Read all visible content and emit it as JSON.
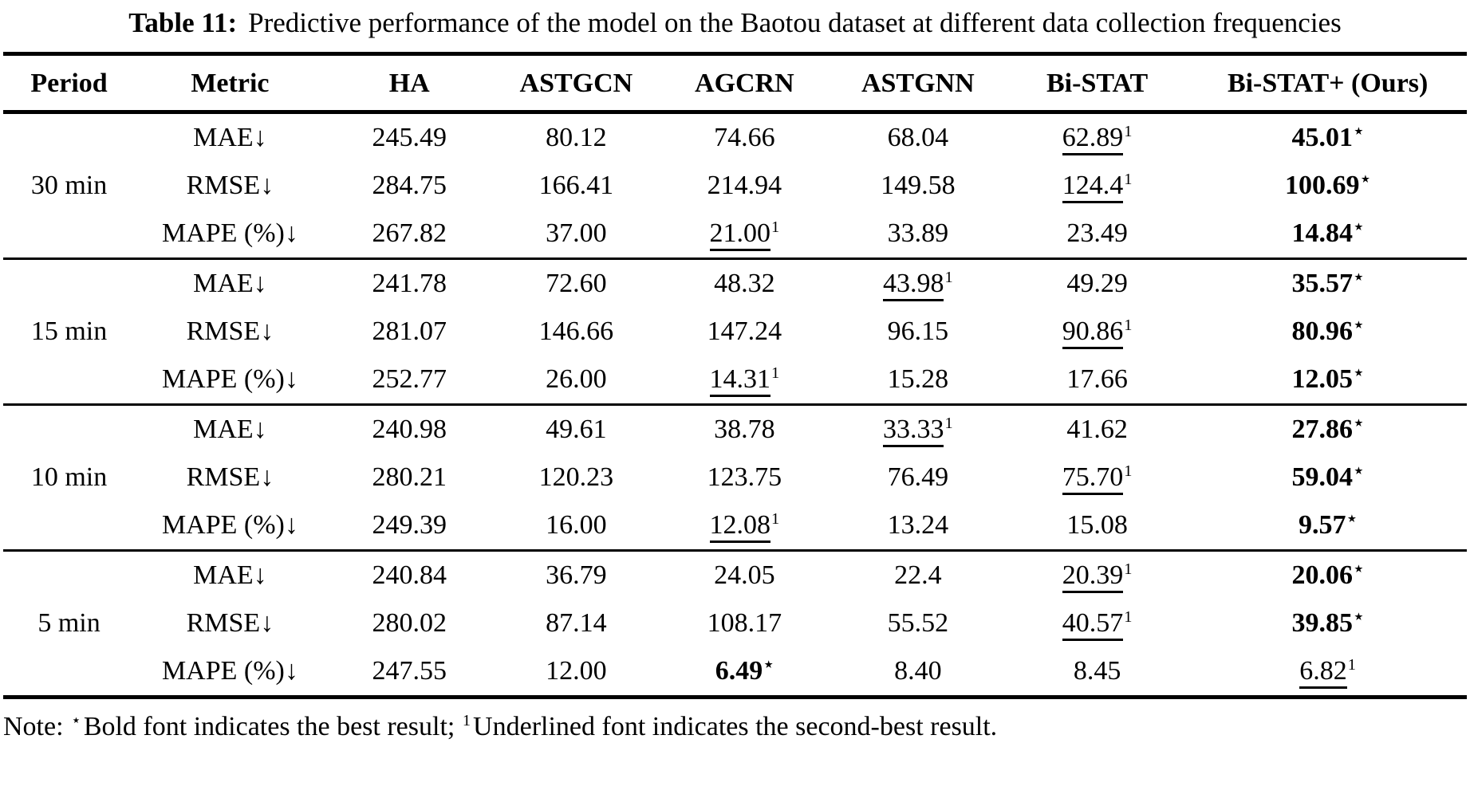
{
  "caption": {
    "label": "Table 11:",
    "text": "Predictive performance of the model on the Baotou dataset at different data collection frequencies"
  },
  "table": {
    "columns": [
      "Period",
      "Metric",
      "HA",
      "ASTGCN",
      "AGCRN",
      "ASTGNN",
      "Bi-STAT",
      "Bi-STAT+ (Ours)"
    ],
    "legend": {
      "best_marker": "⋆",
      "second_best_marker": "1"
    },
    "groups": [
      {
        "period": "30 min",
        "rows": [
          {
            "metric": "MAE↓",
            "values": [
              {
                "text": "245.49"
              },
              {
                "text": "80.12"
              },
              {
                "text": "74.66"
              },
              {
                "text": "68.04"
              },
              {
                "text": "62.89",
                "style": "underline",
                "sup": "1"
              },
              {
                "text": "45.01",
                "style": "bold",
                "sup": "⋆"
              }
            ]
          },
          {
            "metric": "RMSE↓",
            "values": [
              {
                "text": "284.75"
              },
              {
                "text": "166.41"
              },
              {
                "text": "214.94"
              },
              {
                "text": "149.58"
              },
              {
                "text": "124.4",
                "style": "underline",
                "sup": "1"
              },
              {
                "text": "100.69",
                "style": "bold",
                "sup": "⋆"
              }
            ]
          },
          {
            "metric": "MAPE (%)↓",
            "values": [
              {
                "text": "267.82"
              },
              {
                "text": "37.00"
              },
              {
                "text": "21.00",
                "style": "underline",
                "sup": "1"
              },
              {
                "text": "33.89"
              },
              {
                "text": "23.49"
              },
              {
                "text": "14.84",
                "style": "bold",
                "sup": "⋆"
              }
            ]
          }
        ]
      },
      {
        "period": "15 min",
        "rows": [
          {
            "metric": "MAE↓",
            "values": [
              {
                "text": "241.78"
              },
              {
                "text": "72.60"
              },
              {
                "text": "48.32"
              },
              {
                "text": "43.98",
                "style": "underline",
                "sup": "1"
              },
              {
                "text": "49.29"
              },
              {
                "text": "35.57",
                "style": "bold",
                "sup": "⋆"
              }
            ]
          },
          {
            "metric": "RMSE↓",
            "values": [
              {
                "text": "281.07"
              },
              {
                "text": "146.66"
              },
              {
                "text": "147.24"
              },
              {
                "text": "96.15"
              },
              {
                "text": "90.86",
                "style": "underline",
                "sup": "1"
              },
              {
                "text": "80.96",
                "style": "bold",
                "sup": "⋆"
              }
            ]
          },
          {
            "metric": "MAPE (%)↓",
            "values": [
              {
                "text": "252.77"
              },
              {
                "text": "26.00"
              },
              {
                "text": "14.31",
                "style": "underline",
                "sup": "1"
              },
              {
                "text": "15.28"
              },
              {
                "text": "17.66"
              },
              {
                "text": "12.05",
                "style": "bold",
                "sup": "⋆"
              }
            ]
          }
        ]
      },
      {
        "period": "10 min",
        "rows": [
          {
            "metric": "MAE↓",
            "values": [
              {
                "text": "240.98"
              },
              {
                "text": "49.61"
              },
              {
                "text": "38.78"
              },
              {
                "text": "33.33",
                "style": "underline",
                "sup": "1"
              },
              {
                "text": "41.62"
              },
              {
                "text": "27.86",
                "style": "bold",
                "sup": "⋆"
              }
            ]
          },
          {
            "metric": "RMSE↓",
            "values": [
              {
                "text": "280.21"
              },
              {
                "text": "120.23"
              },
              {
                "text": "123.75"
              },
              {
                "text": "76.49"
              },
              {
                "text": "75.70",
                "style": "underline",
                "sup": "1"
              },
              {
                "text": "59.04",
                "style": "bold",
                "sup": "⋆"
              }
            ]
          },
          {
            "metric": "MAPE (%)↓",
            "values": [
              {
                "text": "249.39"
              },
              {
                "text": "16.00"
              },
              {
                "text": "12.08",
                "style": "underline",
                "sup": "1"
              },
              {
                "text": "13.24"
              },
              {
                "text": "15.08"
              },
              {
                "text": "9.57",
                "style": "bold",
                "sup": "⋆"
              }
            ]
          }
        ]
      },
      {
        "period": "5 min",
        "rows": [
          {
            "metric": "MAE↓",
            "values": [
              {
                "text": "240.84"
              },
              {
                "text": "36.79"
              },
              {
                "text": "24.05"
              },
              {
                "text": "22.4"
              },
              {
                "text": "20.39",
                "style": "underline",
                "sup": "1"
              },
              {
                "text": "20.06",
                "style": "bold",
                "sup": "⋆"
              }
            ]
          },
          {
            "metric": "RMSE↓",
            "values": [
              {
                "text": "280.02"
              },
              {
                "text": "87.14"
              },
              {
                "text": "108.17"
              },
              {
                "text": "55.52"
              },
              {
                "text": "40.57",
                "style": "underline",
                "sup": "1"
              },
              {
                "text": "39.85",
                "style": "bold",
                "sup": "⋆"
              }
            ]
          },
          {
            "metric": "MAPE (%)↓",
            "values": [
              {
                "text": "247.55"
              },
              {
                "text": "12.00"
              },
              {
                "text": "6.49",
                "style": "bold",
                "sup": "⋆"
              },
              {
                "text": "8.40"
              },
              {
                "text": "8.45"
              },
              {
                "text": "6.82",
                "style": "underline",
                "sup": "1"
              }
            ]
          }
        ]
      }
    ]
  },
  "note": {
    "prefix": "Note: ",
    "best_marker": "⋆",
    "best_text": "Bold font indicates the best result; ",
    "second_marker": "1",
    "second_text": "Underlined font indicates the second-best result."
  }
}
